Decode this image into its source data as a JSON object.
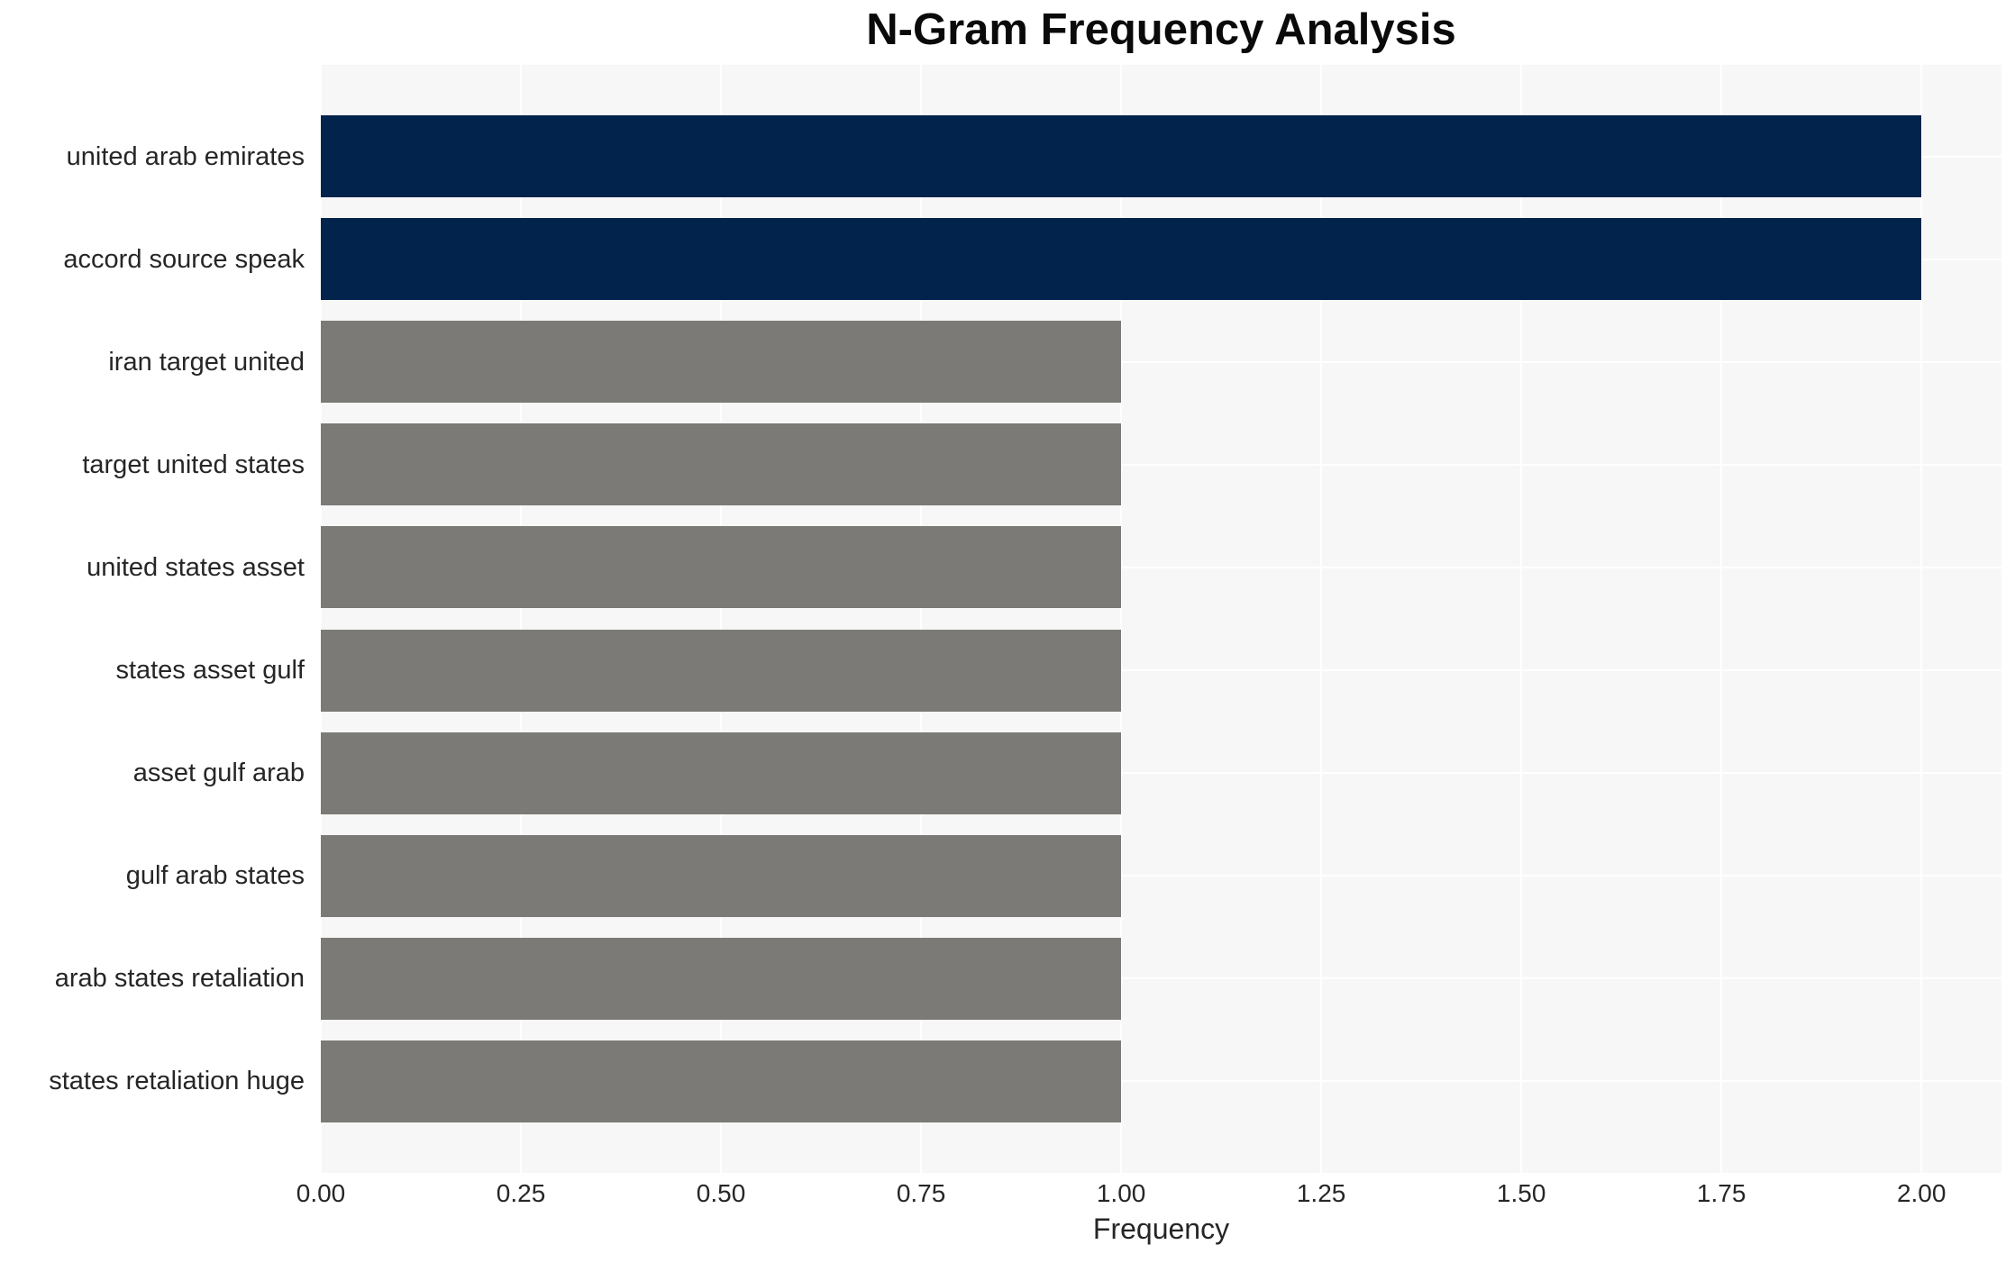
{
  "chart_data": {
    "type": "bar",
    "orientation": "horizontal",
    "title": "N-Gram Frequency Analysis",
    "xlabel": "Frequency",
    "ylabel": "",
    "categories": [
      "united arab emirates",
      "accord source speak",
      "iran target united",
      "target united states",
      "united states asset",
      "states asset gulf",
      "asset gulf arab",
      "gulf arab states",
      "arab states retaliation",
      "states retaliation huge"
    ],
    "values": [
      2,
      2,
      1,
      1,
      1,
      1,
      1,
      1,
      1,
      1
    ],
    "bar_colors": [
      "#02234c",
      "#02234c",
      "#7b7a76",
      "#7b7a76",
      "#7b7a76",
      "#7b7a76",
      "#7b7a76",
      "#7b7a76",
      "#7b7a76",
      "#7b7a76"
    ],
    "xlim": [
      0,
      2.1
    ],
    "xticks": [
      0,
      0.25,
      0.5,
      0.75,
      1.0,
      1.25,
      1.5,
      1.75,
      2.0
    ],
    "xtick_labels": [
      "0.00",
      "0.25",
      "0.50",
      "0.75",
      "1.00",
      "1.25",
      "1.50",
      "1.75",
      "2.00"
    ],
    "grid": true,
    "legend_position": "none",
    "colors": {
      "highlight": "#02234c",
      "default": "#7b7a76",
      "plot_background": "#f7f7f7",
      "gridline": "#ffffff",
      "text": "#262626",
      "title": "#0a0a0a",
      "page_background": "#ffffff"
    }
  }
}
